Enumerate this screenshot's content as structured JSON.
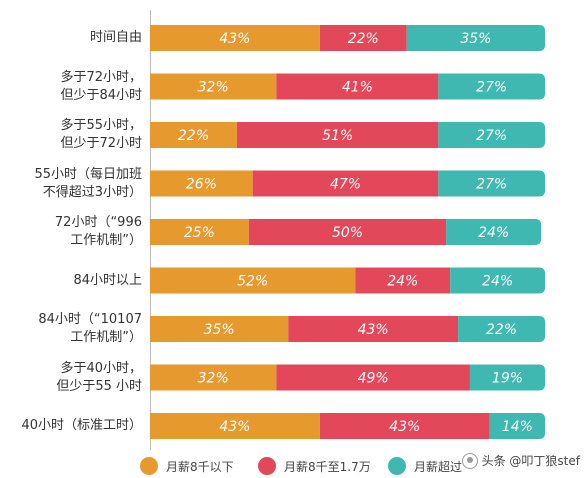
{
  "chart_data": {
    "type": "bar",
    "stacked": true,
    "orientation": "horizontal",
    "categories": [
      "时间自由",
      "多于72小时，\n但少于84小时",
      "多于55小时，\n但少于72小时",
      "55小时（每日加班\n不得超过3小时）",
      "72小时（“996\n工作机制”）",
      "84小时以上",
      "84小时（“10107\n工作机制”）",
      "多于40小时，\n但少于55 小时",
      "40小时（标准工时）"
    ],
    "series": [
      {
        "name": "月薪8千以下",
        "color": "#E69A2E",
        "values": [
          43,
          32,
          22,
          26,
          25,
          52,
          35,
          32,
          43
        ]
      },
      {
        "name": "月薪8千至1.7万",
        "color": "#E2485A",
        "values": [
          22,
          41,
          51,
          47,
          50,
          24,
          43,
          49,
          43
        ]
      },
      {
        "name": "月薪超过",
        "color": "#3EB8B0",
        "values": [
          35,
          27,
          27,
          27,
          24,
          24,
          22,
          19,
          14
        ]
      }
    ],
    "value_suffix": "%",
    "xlim": [
      0,
      100
    ],
    "legend_position": "bottom"
  },
  "watermark": {
    "text": "头条 @叩丁狼stef"
  }
}
